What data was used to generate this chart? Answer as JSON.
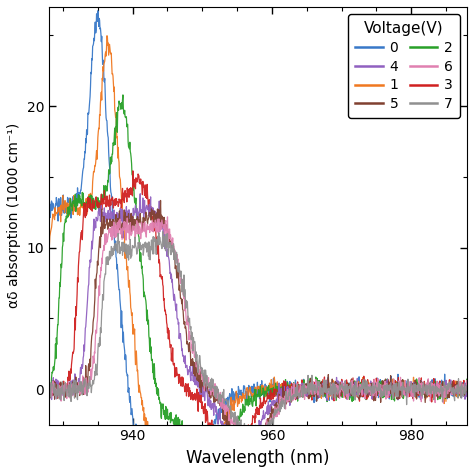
{
  "xlabel": "Wavelength (nm)",
  "ylabel": "αδ absorption (1000 cm⁻¹)",
  "xlim": [
    928,
    988
  ],
  "ylim": [
    -2.5,
    27
  ],
  "yticks": [
    0,
    10,
    20
  ],
  "xticks": [
    940,
    960,
    980
  ],
  "legend_title": "Voltage(V)",
  "legend_labels_left": [
    "0",
    "1",
    "2",
    "3"
  ],
  "legend_labels_right": [
    "4",
    "5",
    "6",
    "7"
  ],
  "colors": {
    "0": "#3878c8",
    "1": "#f07820",
    "2": "#28a028",
    "3": "#d02020",
    "4": "#9060c0",
    "5": "#804030",
    "6": "#e080b0",
    "7": "#909090"
  },
  "peak_positions": [
    935.0,
    936.5,
    938.5,
    941.0,
    942.5,
    943.5,
    944.0,
    944.5
  ],
  "peak_heights": [
    26.5,
    24.5,
    20.5,
    15.0,
    13.0,
    12.5,
    11.8,
    10.5
  ],
  "baselines": [
    13.0,
    12.8,
    13.2,
    13.2,
    12.3,
    11.8,
    11.2,
    10.0
  ],
  "noise_amplitude": 0.35,
  "figsize": [
    4.74,
    4.74
  ],
  "dpi": 100
}
